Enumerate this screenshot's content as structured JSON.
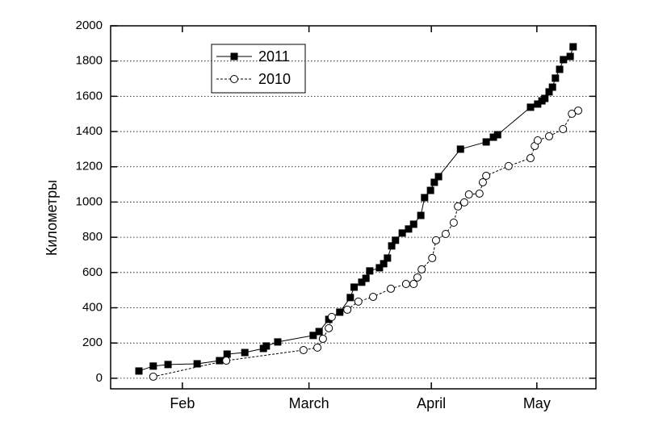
{
  "chart_data": {
    "type": "line",
    "y_label": "Километры",
    "xlim": [
      20,
      135
    ],
    "ylim": [
      -60,
      2000
    ],
    "xticks": [
      {
        "value": 37,
        "label": "Feb"
      },
      {
        "value": 67,
        "label": "March"
      },
      {
        "value": 96,
        "label": "April"
      },
      {
        "value": 121,
        "label": "May"
      }
    ],
    "yticks": [
      0,
      200,
      400,
      600,
      800,
      1000,
      1200,
      1400,
      1600,
      1800,
      2000
    ],
    "grid": true,
    "legend": "upper-left",
    "series": [
      {
        "name": "2011",
        "color": "#000000",
        "marker": "square",
        "dash": false,
        "x": [
          26.7,
          30.1,
          33.6,
          40.5,
          45.8,
          47.6,
          51.8,
          56.2,
          56.9,
          59.6,
          68.0,
          69.4,
          71.7,
          74.3,
          76.8,
          77.7,
          79.5,
          80.5,
          81.4,
          83.7,
          84.7,
          85.6,
          86.6,
          87.5,
          89.1,
          90.6,
          91.8,
          93.5,
          94.4,
          95.8,
          96.7,
          97.7,
          102.9,
          109.0,
          110.7,
          111.7,
          119.5,
          121.2,
          122.2,
          122.9,
          123.9,
          124.7,
          125.4,
          126.4,
          127.3,
          128.9,
          129.6
        ],
        "values": [
          41,
          69,
          78,
          82,
          100,
          137,
          146,
          169,
          183,
          206,
          243,
          265,
          334,
          375,
          458,
          517,
          545,
          567,
          609,
          627,
          650,
          682,
          751,
          783,
          824,
          847,
          874,
          924,
          1025,
          1066,
          1112,
          1144,
          1300,
          1341,
          1368,
          1382,
          1538,
          1556,
          1574,
          1588,
          1625,
          1652,
          1703,
          1753,
          1808,
          1826,
          1881
        ]
      },
      {
        "name": "2010",
        "color": "#000000",
        "marker": "circle",
        "dash": true,
        "x": [
          30.1,
          47.4,
          65.7,
          69.0,
          70.3,
          71.7,
          72.4,
          76.1,
          78.7,
          82.2,
          86.4,
          90.0,
          91.8,
          92.7,
          93.7,
          96.2,
          97.1,
          99.4,
          101.3,
          102.3,
          103.8,
          104.9,
          107.4,
          108.2,
          109.0,
          114.3,
          119.5,
          120.5,
          121.2,
          123.9,
          127.2,
          129.3,
          130.8
        ],
        "values": [
          9,
          100,
          160,
          174,
          224,
          284,
          348,
          389,
          435,
          462,
          508,
          535,
          535,
          572,
          618,
          682,
          783,
          819,
          883,
          975,
          998,
          1043,
          1048,
          1112,
          1149,
          1204,
          1249,
          1318,
          1350,
          1373,
          1414,
          1501,
          1519
        ]
      }
    ]
  }
}
